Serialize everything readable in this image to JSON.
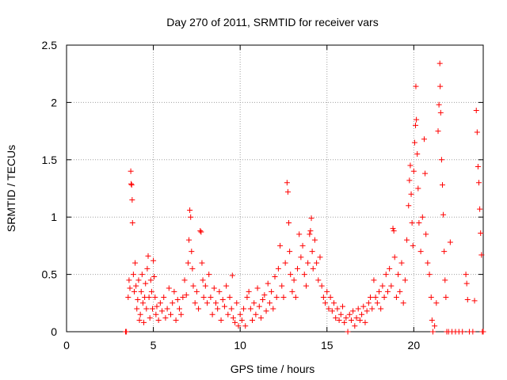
{
  "chart_data": {
    "type": "scatter",
    "title": "Day 270 of 2011, SRMTID for receiver vars",
    "xlabel": "GPS time / hours",
    "ylabel": "SRMTID / TECUs",
    "xlim": [
      0,
      24
    ],
    "ylim": [
      0,
      2.5
    ],
    "xticks": [
      0,
      5,
      10,
      15,
      20
    ],
    "xtick_labels": [
      "0",
      "5",
      "10",
      "15",
      "20"
    ],
    "yticks": [
      0,
      0.5,
      1,
      1.5,
      2,
      2.5
    ],
    "ytick_labels": [
      "0",
      "0.5",
      "1",
      "1.5",
      "2",
      "2.5"
    ],
    "grid": true,
    "series_color": "#ff0000",
    "marker": "plus",
    "series": [
      {
        "name": "SRMTID",
        "points": [
          [
            3.4,
            0.0
          ],
          [
            3.45,
            0.0
          ],
          [
            3.55,
            0.3
          ],
          [
            3.6,
            0.45
          ],
          [
            3.65,
            0.38
          ],
          [
            3.7,
            1.4
          ],
          [
            3.72,
            1.29
          ],
          [
            3.75,
            1.28
          ],
          [
            3.78,
            1.15
          ],
          [
            3.8,
            0.95
          ],
          [
            3.85,
            0.5
          ],
          [
            3.9,
            0.35
          ],
          [
            3.95,
            0.6
          ],
          [
            4.0,
            0.4
          ],
          [
            4.05,
            0.2
          ],
          [
            4.1,
            0.28
          ],
          [
            4.15,
            0.45
          ],
          [
            4.2,
            0.1
          ],
          [
            4.25,
            0.15
          ],
          [
            4.3,
            0.35
          ],
          [
            4.35,
            0.5
          ],
          [
            4.4,
            0.25
          ],
          [
            4.45,
            0.08
          ],
          [
            4.5,
            0.3
          ],
          [
            4.55,
            0.42
          ],
          [
            4.6,
            0.2
          ],
          [
            4.65,
            0.55
          ],
          [
            4.7,
            0.66
          ],
          [
            4.75,
            0.3
          ],
          [
            4.8,
            0.12
          ],
          [
            4.85,
            0.45
          ],
          [
            4.9,
            0.35
          ],
          [
            4.95,
            0.2
          ],
          [
            5.0,
            0.62
          ],
          [
            5.05,
            0.48
          ],
          [
            5.1,
            0.3
          ],
          [
            5.15,
            0.15
          ],
          [
            5.2,
            0.22
          ],
          [
            5.3,
            0.1
          ],
          [
            5.4,
            0.25
          ],
          [
            5.5,
            0.18
          ],
          [
            5.6,
            0.3
          ],
          [
            5.7,
            0.12
          ],
          [
            5.8,
            0.2
          ],
          [
            5.9,
            0.38
          ],
          [
            6.0,
            0.15
          ],
          [
            6.1,
            0.25
          ],
          [
            6.2,
            0.35
          ],
          [
            6.3,
            0.1
          ],
          [
            6.4,
            0.28
          ],
          [
            6.5,
            0.2
          ],
          [
            6.6,
            0.15
          ],
          [
            6.7,
            0.3
          ],
          [
            6.8,
            0.45
          ],
          [
            6.9,
            0.32
          ],
          [
            7.0,
            0.6
          ],
          [
            7.05,
            0.8
          ],
          [
            7.1,
            1.06
          ],
          [
            7.15,
            1.0
          ],
          [
            7.2,
            0.7
          ],
          [
            7.25,
            0.55
          ],
          [
            7.3,
            0.4
          ],
          [
            7.4,
            0.25
          ],
          [
            7.5,
            0.35
          ],
          [
            7.6,
            0.2
          ],
          [
            7.7,
            0.88
          ],
          [
            7.75,
            0.87
          ],
          [
            7.8,
            0.6
          ],
          [
            7.85,
            0.45
          ],
          [
            7.9,
            0.3
          ],
          [
            8.0,
            0.4
          ],
          [
            8.1,
            0.25
          ],
          [
            8.2,
            0.5
          ],
          [
            8.3,
            0.3
          ],
          [
            8.4,
            0.15
          ],
          [
            8.5,
            0.38
          ],
          [
            8.6,
            0.25
          ],
          [
            8.7,
            0.2
          ],
          [
            8.8,
            0.35
          ],
          [
            8.9,
            0.1
          ],
          [
            9.0,
            0.28
          ],
          [
            9.1,
            0.22
          ],
          [
            9.2,
            0.4
          ],
          [
            9.3,
            0.15
          ],
          [
            9.4,
            0.3
          ],
          [
            9.5,
            0.2
          ],
          [
            9.55,
            0.49
          ],
          [
            9.6,
            0.12
          ],
          [
            9.7,
            0.08
          ],
          [
            9.8,
            0.25
          ],
          [
            9.9,
            0.05
          ],
          [
            10.0,
            0.15
          ],
          [
            10.1,
            0.1
          ],
          [
            10.2,
            0.2
          ],
          [
            10.3,
            0.05
          ],
          [
            10.4,
            0.3
          ],
          [
            10.5,
            0.35
          ],
          [
            10.6,
            0.2
          ],
          [
            10.7,
            0.1
          ],
          [
            10.8,
            0.25
          ],
          [
            10.9,
            0.15
          ],
          [
            11.0,
            0.38
          ],
          [
            11.1,
            0.22
          ],
          [
            11.2,
            0.12
          ],
          [
            11.3,
            0.28
          ],
          [
            11.4,
            0.32
          ],
          [
            11.5,
            0.18
          ],
          [
            11.6,
            0.42
          ],
          [
            11.7,
            0.25
          ],
          [
            11.8,
            0.35
          ],
          [
            11.9,
            0.2
          ],
          [
            12.0,
            0.48
          ],
          [
            12.1,
            0.3
          ],
          [
            12.2,
            0.55
          ],
          [
            12.3,
            0.75
          ],
          [
            12.4,
            0.4
          ],
          [
            12.5,
            0.3
          ],
          [
            12.6,
            0.6
          ],
          [
            12.7,
            1.3
          ],
          [
            12.75,
            1.22
          ],
          [
            12.8,
            0.95
          ],
          [
            12.85,
            0.7
          ],
          [
            12.9,
            0.5
          ],
          [
            13.0,
            0.35
          ],
          [
            13.1,
            0.45
          ],
          [
            13.2,
            0.3
          ],
          [
            13.3,
            0.55
          ],
          [
            13.4,
            0.85
          ],
          [
            13.5,
            0.65
          ],
          [
            13.6,
            0.75
          ],
          [
            13.7,
            0.5
          ],
          [
            13.8,
            0.4
          ],
          [
            13.9,
            0.6
          ],
          [
            14.0,
            0.85
          ],
          [
            14.05,
            0.88
          ],
          [
            14.1,
            0.99
          ],
          [
            14.15,
            0.7
          ],
          [
            14.2,
            0.55
          ],
          [
            14.3,
            0.8
          ],
          [
            14.4,
            0.6
          ],
          [
            14.5,
            0.45
          ],
          [
            14.6,
            0.65
          ],
          [
            14.7,
            0.4
          ],
          [
            14.8,
            0.3
          ],
          [
            14.9,
            0.25
          ],
          [
            15.0,
            0.35
          ],
          [
            15.1,
            0.2
          ],
          [
            15.2,
            0.3
          ],
          [
            15.3,
            0.18
          ],
          [
            15.4,
            0.25
          ],
          [
            15.5,
            0.12
          ],
          [
            15.6,
            0.2
          ],
          [
            15.7,
            0.1
          ],
          [
            15.8,
            0.15
          ],
          [
            15.9,
            0.22
          ],
          [
            16.0,
            0.08
          ],
          [
            16.1,
            0.12
          ],
          [
            16.2,
            0.0
          ],
          [
            16.3,
            0.15
          ],
          [
            16.4,
            0.1
          ],
          [
            16.5,
            0.18
          ],
          [
            16.6,
            0.05
          ],
          [
            16.7,
            0.12
          ],
          [
            16.8,
            0.2
          ],
          [
            16.9,
            0.1
          ],
          [
            17.0,
            0.15
          ],
          [
            17.1,
            0.22
          ],
          [
            17.2,
            0.08
          ],
          [
            17.3,
            0.18
          ],
          [
            17.4,
            0.25
          ],
          [
            17.5,
            0.3
          ],
          [
            17.6,
            0.2
          ],
          [
            17.7,
            0.45
          ],
          [
            17.8,
            0.3
          ],
          [
            17.9,
            0.25
          ],
          [
            18.0,
            0.35
          ],
          [
            18.1,
            0.2
          ],
          [
            18.2,
            0.4
          ],
          [
            18.3,
            0.3
          ],
          [
            18.4,
            0.5
          ],
          [
            18.5,
            0.35
          ],
          [
            18.6,
            0.55
          ],
          [
            18.7,
            0.4
          ],
          [
            18.8,
            0.9
          ],
          [
            18.85,
            0.88
          ],
          [
            18.9,
            0.65
          ],
          [
            19.0,
            0.3
          ],
          [
            19.1,
            0.5
          ],
          [
            19.2,
            0.35
          ],
          [
            19.3,
            0.6
          ],
          [
            19.4,
            0.25
          ],
          [
            19.5,
            0.45
          ],
          [
            19.6,
            0.8
          ],
          [
            19.7,
            1.1
          ],
          [
            19.75,
            1.32
          ],
          [
            19.8,
            1.45
          ],
          [
            19.85,
            1.2
          ],
          [
            19.9,
            0.95
          ],
          [
            19.95,
            0.75
          ],
          [
            20.0,
            1.4
          ],
          [
            20.05,
            1.65
          ],
          [
            20.1,
            1.8
          ],
          [
            20.12,
            2.14
          ],
          [
            20.15,
            1.85
          ],
          [
            20.2,
            1.55
          ],
          [
            20.25,
            1.25
          ],
          [
            20.3,
            0.95
          ],
          [
            20.4,
            0.7
          ],
          [
            20.5,
            1.0
          ],
          [
            20.6,
            1.68
          ],
          [
            20.65,
            1.38
          ],
          [
            20.7,
            0.85
          ],
          [
            20.8,
            0.6
          ],
          [
            20.9,
            0.5
          ],
          [
            21.0,
            0.3
          ],
          [
            21.05,
            0.1
          ],
          [
            21.1,
            0.0
          ],
          [
            21.2,
            0.05
          ],
          [
            21.3,
            0.25
          ],
          [
            21.4,
            1.75
          ],
          [
            21.45,
            1.98
          ],
          [
            21.5,
            2.34
          ],
          [
            21.52,
            2.14
          ],
          [
            21.55,
            1.91
          ],
          [
            21.6,
            1.5
          ],
          [
            21.65,
            1.28
          ],
          [
            21.7,
            1.02
          ],
          [
            21.75,
            0.7
          ],
          [
            21.8,
            0.45
          ],
          [
            21.85,
            0.3
          ],
          [
            21.9,
            0.0
          ],
          [
            22.0,
            0.0
          ],
          [
            22.1,
            0.78
          ],
          [
            22.2,
            0.0
          ],
          [
            22.4,
            0.0
          ],
          [
            22.6,
            0.0
          ],
          [
            22.8,
            0.0
          ],
          [
            23.0,
            0.5
          ],
          [
            23.05,
            0.42
          ],
          [
            23.1,
            0.28
          ],
          [
            23.2,
            0.0
          ],
          [
            23.4,
            0.0
          ],
          [
            23.5,
            0.27
          ],
          [
            23.6,
            1.93
          ],
          [
            23.65,
            1.74
          ],
          [
            23.7,
            1.44
          ],
          [
            23.75,
            1.3
          ],
          [
            23.8,
            1.07
          ],
          [
            23.85,
            0.86
          ],
          [
            23.9,
            0.67
          ],
          [
            23.95,
            0.0
          ],
          [
            24.0,
            0.0
          ]
        ]
      }
    ]
  }
}
